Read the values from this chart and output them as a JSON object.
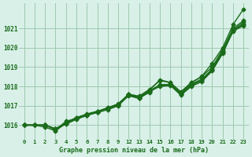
{
  "title": "Graphe pression niveau de la mer (hPa)",
  "bg_color": "#d8f0e8",
  "grid_color": "#a0c8b0",
  "line_color": "#1a6b1a",
  "ylim": [
    1015.3,
    1022.3
  ],
  "yticks": [
    1016,
    1017,
    1018,
    1019,
    1020,
    1021
  ],
  "xticks": [
    0,
    1,
    2,
    3,
    4,
    5,
    6,
    7,
    8,
    9,
    12,
    13,
    14,
    15,
    16,
    17,
    18,
    19,
    20,
    21,
    22,
    23
  ],
  "series": [
    [
      1016.0,
      1016.0,
      1016.0,
      1015.8,
      1016.05,
      1016.3,
      1016.5,
      1016.65,
      1016.8,
      1017.0,
      1017.55,
      1017.4,
      1017.7,
      1018.1,
      1018.1,
      1017.65,
      1018.1,
      1018.3,
      1018.85,
      1019.75,
      1020.9,
      1021.2
    ],
    [
      1016.0,
      1016.0,
      1015.9,
      1015.7,
      1016.1,
      1016.4,
      1016.55,
      1016.7,
      1016.9,
      1017.1,
      1017.6,
      1017.45,
      1017.8,
      1018.35,
      1018.2,
      1017.7,
      1018.2,
      1018.5,
      1019.0,
      1019.9,
      1021.0,
      1021.4
    ],
    [
      1016.0,
      1016.0,
      1016.0,
      1015.75,
      1016.2,
      1016.35,
      1016.55,
      1016.7,
      1016.9,
      1017.05,
      1017.55,
      1017.4,
      1017.75,
      1018.0,
      1018.05,
      1017.55,
      1018.0,
      1018.25,
      1018.8,
      1019.7,
      1020.85,
      1021.15
    ],
    [
      1016.0,
      1016.0,
      1016.0,
      1015.82,
      1016.12,
      1016.38,
      1016.58,
      1016.72,
      1016.85,
      1017.02,
      1017.52,
      1017.38,
      1017.72,
      1018.05,
      1018.12,
      1017.6,
      1018.12,
      1018.38,
      1018.88,
      1019.82,
      1020.92,
      1021.32
    ],
    [
      1016.0,
      1016.0,
      1016.0,
      1015.8,
      1016.1,
      1016.35,
      1016.52,
      1016.68,
      1016.88,
      1017.08,
      1017.58,
      1017.42,
      1017.78,
      1018.08,
      1018.08,
      1017.62,
      1018.05,
      1018.32,
      1018.9,
      1019.78,
      1020.88,
      1021.22
    ]
  ],
  "series_top": [
    1016.0,
    1016.0,
    1016.0,
    1015.8,
    1016.1,
    1016.35,
    1016.52,
    1016.68,
    1016.88,
    1017.08,
    1017.6,
    1017.5,
    1017.85,
    1018.3,
    1018.2,
    1017.72,
    1018.2,
    1018.52,
    1019.2,
    1020.0,
    1021.2,
    1022.0
  ],
  "marker": "D",
  "markersize": 2.5,
  "linewidth": 1.0
}
